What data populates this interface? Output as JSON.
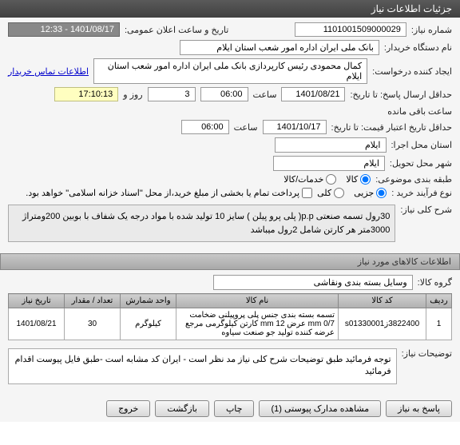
{
  "header": {
    "title": "جزئیات اطلاعات نیاز"
  },
  "form": {
    "need_number_label": "شماره نیاز:",
    "need_number": "1101001509000029",
    "device_label": "نام دستگاه خریدار:",
    "device": "بانک ملی ایران اداره امور شعب استان ایلام",
    "creator_label": "ایجاد کننده درخواست:",
    "creator": "کمال محمودی  رئیس کارپردازی  بانک ملی ایران اداره امور شعب استان ایلام",
    "contact_link": "اطلاعات تماس خریدار",
    "deadline_label": "حداقل ارسال پاسخ: تا تاریخ:",
    "deadline_date": "1401/08/21",
    "deadline_time_label": "ساعت",
    "deadline_time": "06:00",
    "days": "3",
    "days_label": "روز و",
    "countdown": "17:10:13",
    "countdown_suffix": "ساعت باقی مانده",
    "validity_label": "حداقل تاریخ اعتبار قیمت: تا تاریخ:",
    "validity_date": "1401/10/17",
    "validity_time_label": "ساعت",
    "validity_time": "06:00",
    "announce_label": "تاریخ و ساعت اعلان عمومی:",
    "announce_value": "1401/08/17 - 12:33",
    "exec_label": "استان محل اجرا:",
    "exec_value": "ایلام",
    "delivery_label": "شهر محل تحویل:",
    "delivery_value": "ایلام",
    "category_label": "طبقه بندی موضوعی:",
    "cat_goods": "کالا",
    "cat_service": "خدمات/کالا",
    "process_label": "نوع فرآیند خرید :",
    "proc_partial": "جزیی",
    "proc_total": "کلی",
    "process_note": "پرداخت تمام یا بخشی از مبلغ خرید،از محل \"اسناد خزانه اسلامی\" خواهد بود."
  },
  "need_title": {
    "label": "شرح کلی نیاز:",
    "text": "30رول تسمه صنعتی p.p( پلی پرو پیلن ) سایز 10 تولید شده با مواد درجه یک شفاف با بوبین 200ومتراژ 3000متر هر کارتن شامل 2رول میباشد"
  },
  "items_section": {
    "title": "اطلاعات کالاهای مورد نیاز",
    "group_label": "گروه کالا:",
    "group_value": "وسایل بسته بندی  ونقاشی",
    "columns": {
      "row": "ردیف",
      "code": "کد کالا",
      "name": "نام کالا",
      "unit": "واحد شمارش",
      "qty": "تعداد / مقدار",
      "date": "تاریخ نیاز"
    },
    "rows": [
      {
        "row": "1",
        "code": "3822400زs01330001",
        "name": "تسمه بسته بندی جنس پلی پروپیلنی ضخامت mm 0/7 عرض mm 12 کارتن کیلوگرمی مرجع عرضه کننده تولید جو صنعت سیاوه",
        "unit": "کیلوگرم",
        "qty": "30",
        "date": "1401/08/21"
      }
    ]
  },
  "notes": {
    "label": "توضیحات نیاز:",
    "text": "توجه فرمائید طبق توضیحات شرح کلی نیاز مد نظر است - ایران کد مشابه است -طبق فایل پیوست اقدام فرمائید"
  },
  "buttons": {
    "reply": "پاسخ به نیاز",
    "attachments": "مشاهده مدارک پیوستی (1)",
    "print": "چاپ",
    "back": "بازگشت",
    "exit": "خروج"
  }
}
